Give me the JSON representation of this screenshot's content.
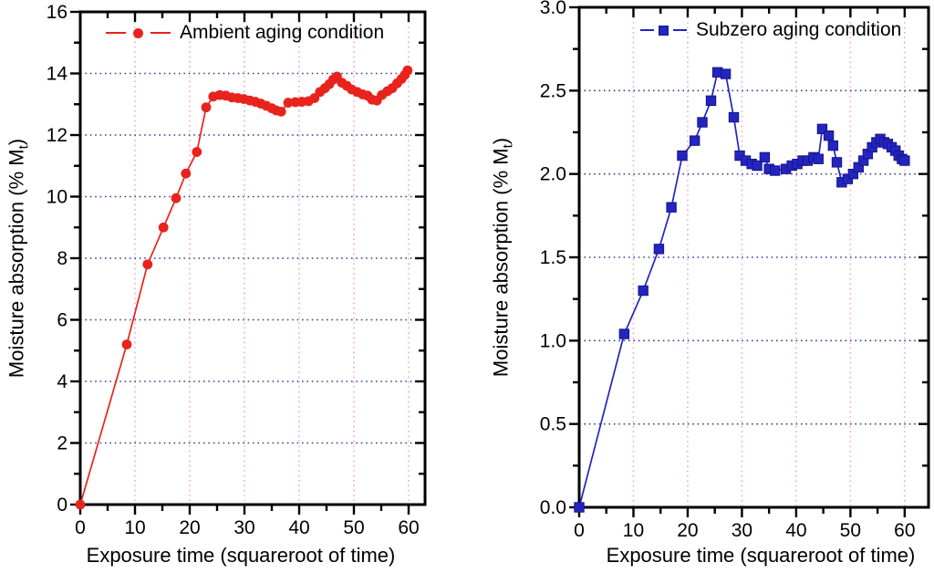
{
  "styles": {
    "axis_color": "#000000",
    "grid_horizontal_color": "#3b3b9c",
    "grid_vertical_color": "#f2a8c4",
    "background": "#ffffff"
  },
  "chart_data": [
    {
      "type": "line",
      "id": "ambient",
      "title": "",
      "legend": {
        "label": "Ambient aging condition",
        "position": "top-center"
      },
      "series": [
        {
          "name": "Ambient aging condition",
          "color": "#e8231d",
          "marker": "circle",
          "x": [
            0,
            8.5,
            12.3,
            15.2,
            17.5,
            19.3,
            21.3,
            23.0,
            24.3,
            25.5,
            26.6,
            27.7,
            28.8,
            29.9,
            31.0,
            32.0,
            33.0,
            34.0,
            35.0,
            35.8,
            36.7,
            38.0,
            39.3,
            40.5,
            41.7,
            42.8,
            43.8,
            44.7,
            45.5,
            46.2,
            46.9,
            47.8,
            48.7,
            49.6,
            50.6,
            51.6,
            52.5,
            53.3,
            54.2,
            55.1,
            56.1,
            57.0,
            57.9,
            58.7,
            59.3,
            59.8
          ],
          "y": [
            0,
            5.2,
            7.8,
            9.0,
            9.95,
            10.75,
            11.45,
            12.9,
            13.25,
            13.3,
            13.28,
            13.22,
            13.2,
            13.17,
            13.12,
            13.08,
            13.02,
            12.95,
            12.87,
            12.8,
            12.76,
            13.05,
            13.07,
            13.08,
            13.1,
            13.2,
            13.4,
            13.52,
            13.65,
            13.8,
            13.9,
            13.7,
            13.6,
            13.48,
            13.4,
            13.32,
            13.28,
            13.15,
            13.12,
            13.3,
            13.42,
            13.52,
            13.68,
            13.82,
            13.95,
            14.1
          ]
        }
      ],
      "axes": {
        "xlabel": "Exposure time (squareroot of time)",
        "ylabel": {
          "pre": "Moisture absorption (% M",
          "sub": "t",
          "post": ")"
        },
        "xlim": [
          0,
          63
        ],
        "ylim": [
          0,
          16
        ],
        "xticks": {
          "major": [
            0,
            10,
            20,
            30,
            40,
            50,
            60
          ],
          "labels": [
            "0",
            "10",
            "20",
            "30",
            "40",
            "50",
            "60"
          ],
          "minor": [
            5,
            15,
            25,
            35,
            45,
            55
          ]
        },
        "yticks": {
          "major": [
            0,
            2,
            4,
            6,
            8,
            10,
            12,
            14,
            16
          ],
          "labels": [
            "0",
            "2",
            "4",
            "6",
            "8",
            "10",
            "12",
            "14",
            "16"
          ],
          "minor": [
            1,
            3,
            5,
            7,
            9,
            11,
            13,
            15
          ]
        },
        "grid_x": [
          10,
          20,
          30,
          40,
          50,
          60
        ],
        "grid_y": [
          2,
          4,
          6,
          8,
          10,
          12,
          14
        ]
      }
    },
    {
      "type": "line",
      "id": "subzero",
      "title": "",
      "legend": {
        "label": "Subzero aging condition",
        "position": "top-center"
      },
      "series": [
        {
          "name": "Subzero aging condition",
          "color": "#2424c0",
          "marker": "square",
          "x": [
            0,
            8.3,
            11.8,
            14.7,
            17.0,
            19.0,
            21.3,
            22.7,
            24.3,
            25.5,
            27.0,
            28.5,
            29.6,
            30.7,
            31.8,
            32.8,
            34.2,
            35.0,
            36.1,
            38.1,
            39.2,
            40.2,
            41.2,
            42.1,
            43.2,
            44.1,
            44.8,
            46.0,
            46.8,
            47.5,
            48.4,
            49.5,
            50.5,
            51.5,
            52.4,
            53.2,
            54.0,
            54.8,
            55.5,
            56.2,
            56.9,
            57.6,
            58.3,
            58.9,
            59.5,
            60.0
          ],
          "y": [
            0,
            1.04,
            1.3,
            1.55,
            1.8,
            2.11,
            2.2,
            2.31,
            2.44,
            2.61,
            2.6,
            2.34,
            2.11,
            2.08,
            2.06,
            2.05,
            2.1,
            2.03,
            2.02,
            2.03,
            2.05,
            2.06,
            2.08,
            2.08,
            2.1,
            2.09,
            2.27,
            2.23,
            2.17,
            2.07,
            1.95,
            1.97,
            2.0,
            2.04,
            2.08,
            2.12,
            2.16,
            2.19,
            2.21,
            2.19,
            2.18,
            2.16,
            2.14,
            2.11,
            2.09,
            2.08
          ]
        }
      ],
      "axes": {
        "xlabel": "Exposure time (squareroot of time)",
        "ylabel": {
          "pre": "Moisture absorption (% M",
          "sub": "t",
          "post": ")"
        },
        "xlim": [
          0,
          64.4
        ],
        "ylim": [
          0,
          3.0
        ],
        "xticks": {
          "major": [
            0,
            10,
            20,
            30,
            40,
            50,
            60
          ],
          "labels": [
            "0",
            "10",
            "20",
            "30",
            "40",
            "50",
            "60"
          ],
          "minor": [
            5,
            15,
            25,
            35,
            45,
            55
          ]
        },
        "yticks": {
          "major": [
            0,
            0.5,
            1.0,
            1.5,
            2.0,
            2.5,
            3.0
          ],
          "labels": [
            "0.0",
            "0.5",
            "1.0",
            "1.5",
            "2.0",
            "2.5",
            "3.0"
          ],
          "minor": [
            0.25,
            0.75,
            1.25,
            1.75,
            2.25,
            2.75
          ]
        },
        "grid_x": [
          10,
          20,
          30,
          40,
          50,
          60
        ],
        "grid_y": [
          0.5,
          1.0,
          1.5,
          2.0,
          2.5
        ]
      }
    }
  ]
}
